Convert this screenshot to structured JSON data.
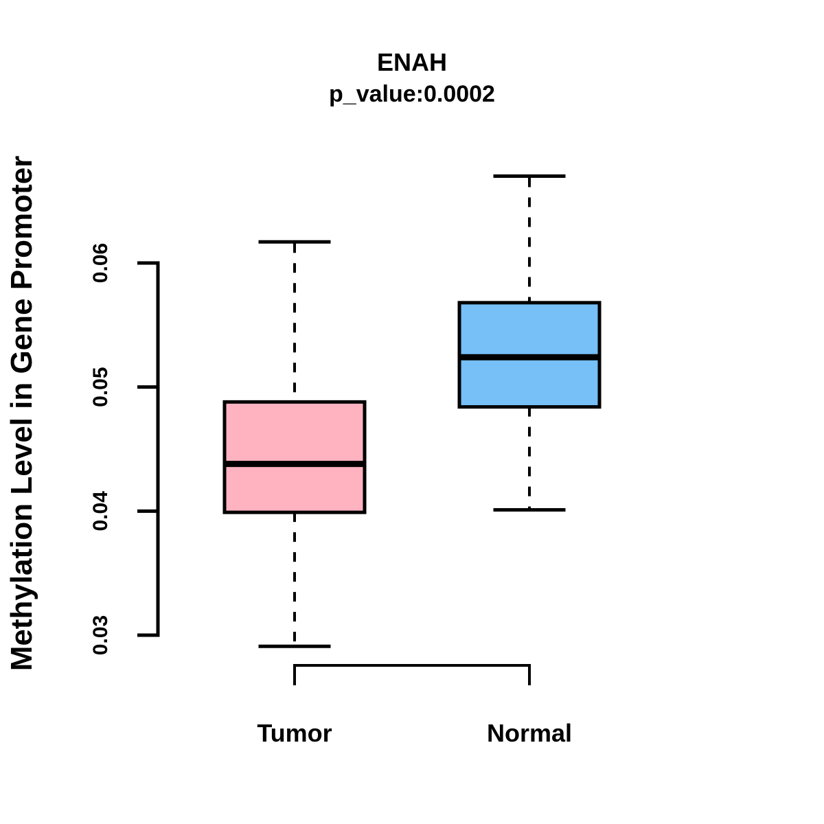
{
  "chart_data": {
    "type": "boxplot",
    "title": "ENAH",
    "subtitle": "p_value:0.0002",
    "ylabel": "Methylation Level in Gene Promoter",
    "xlabel": "",
    "categories": [
      "Tumor",
      "Normal"
    ],
    "series": [
      {
        "name": "Tumor",
        "color": "#FFB3C1",
        "lower_whisker": 0.0291,
        "q1": 0.0399,
        "median": 0.0438,
        "q3": 0.0488,
        "upper_whisker": 0.0617
      },
      {
        "name": "Normal",
        "color": "#76BFF7",
        "lower_whisker": 0.0401,
        "q1": 0.0484,
        "median": 0.0524,
        "q3": 0.0568,
        "upper_whisker": 0.067
      }
    ],
    "y_ticks": [
      0.03,
      0.04,
      0.05,
      0.06
    ],
    "y_tick_labels": [
      "0.03",
      "0.04",
      "0.05",
      "0.06"
    ],
    "ylim": [
      0.0285,
      0.0675
    ],
    "grid": false,
    "legend_position": "none",
    "whisker_style": "dashed",
    "box_border_color": "#000000",
    "median_color": "#000000",
    "axis_color": "#000000",
    "background_color": "#FFFFFF"
  }
}
